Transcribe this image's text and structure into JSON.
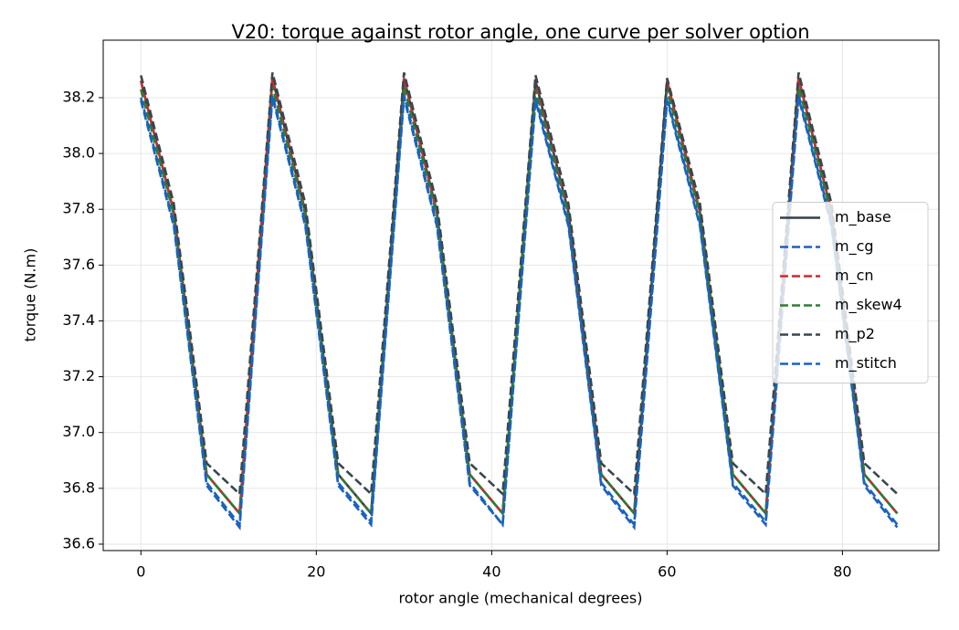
{
  "chart_data": {
    "type": "line",
    "title": "V20: torque against rotor angle, one curve per solver option",
    "x_label": "rotor angle (mechanical degrees)",
    "y_label": "torque (N.m)",
    "x": [
      0,
      3.75,
      7.5,
      11.25,
      15,
      18.75,
      22.5,
      26.25,
      30,
      33.75,
      37.5,
      41.25,
      45,
      48.75,
      52.5,
      56.25,
      60,
      63.75,
      67.5,
      71.25,
      75,
      78.75,
      82.5,
      86.25
    ],
    "series": [
      {
        "name": "m_base",
        "color": "#333f48",
        "style": "solid",
        "values": [
          38.26,
          37.79,
          36.85,
          36.71,
          38.27,
          37.79,
          36.85,
          36.71,
          38.27,
          37.79,
          36.85,
          36.71,
          38.26,
          37.79,
          36.85,
          36.71,
          38.26,
          37.79,
          36.85,
          36.71,
          38.27,
          37.79,
          36.85,
          36.71
        ]
      },
      {
        "name": "m_cg",
        "color": "#1f5fbf",
        "style": "dashed",
        "values": [
          38.19,
          37.74,
          36.81,
          36.66,
          38.2,
          37.74,
          36.81,
          36.67,
          38.2,
          37.74,
          36.81,
          36.67,
          38.19,
          37.74,
          36.81,
          36.66,
          38.19,
          37.74,
          36.81,
          36.67,
          38.2,
          37.74,
          36.81,
          36.66
        ]
      },
      {
        "name": "m_cn",
        "color": "#d62728",
        "style": "dashed",
        "values": [
          38.26,
          37.79,
          36.85,
          36.71,
          38.27,
          37.79,
          36.85,
          36.71,
          38.27,
          37.79,
          36.85,
          36.71,
          38.26,
          37.79,
          36.85,
          36.71,
          38.26,
          37.79,
          36.85,
          36.71,
          38.27,
          37.79,
          36.85,
          36.71
        ]
      },
      {
        "name": "m_skew4",
        "color": "#2e7d32",
        "style": "dashed",
        "values": [
          38.23,
          37.78,
          36.85,
          36.71,
          38.24,
          37.78,
          36.85,
          36.71,
          38.24,
          37.78,
          36.85,
          36.71,
          38.23,
          37.78,
          36.85,
          36.71,
          38.23,
          37.78,
          36.85,
          36.71,
          38.24,
          37.78,
          36.85,
          36.71
        ]
      },
      {
        "name": "m_p2",
        "color": "#37474f",
        "style": "dashed",
        "values": [
          38.28,
          37.82,
          36.89,
          36.78,
          38.29,
          37.82,
          36.89,
          36.78,
          38.29,
          37.82,
          36.89,
          36.78,
          38.28,
          37.82,
          36.89,
          36.78,
          38.27,
          37.82,
          36.89,
          36.78,
          38.29,
          37.82,
          36.89,
          36.78
        ]
      },
      {
        "name": "m_stitch",
        "color": "#1565c0",
        "style": "dashed",
        "values": [
          38.2,
          37.75,
          36.82,
          36.67,
          38.21,
          37.75,
          36.82,
          36.68,
          38.21,
          37.75,
          36.82,
          36.67,
          38.2,
          37.75,
          36.82,
          36.67,
          38.2,
          37.75,
          36.82,
          36.68,
          38.21,
          37.75,
          36.82,
          36.67
        ]
      }
    ],
    "xlim": [
      -4.3,
      91.0
    ],
    "ylim": [
      36.577,
      38.406
    ],
    "xticks": [
      0,
      20,
      40,
      60,
      80
    ],
    "yticks": [
      36.6,
      36.8,
      {
        "value": 37.0,
        "label": "37.0"
      },
      37.2,
      37.4,
      37.6,
      37.8,
      {
        "value": 38.0,
        "label": "38.0"
      },
      38.2
    ],
    "grid": true,
    "legend": "right"
  }
}
